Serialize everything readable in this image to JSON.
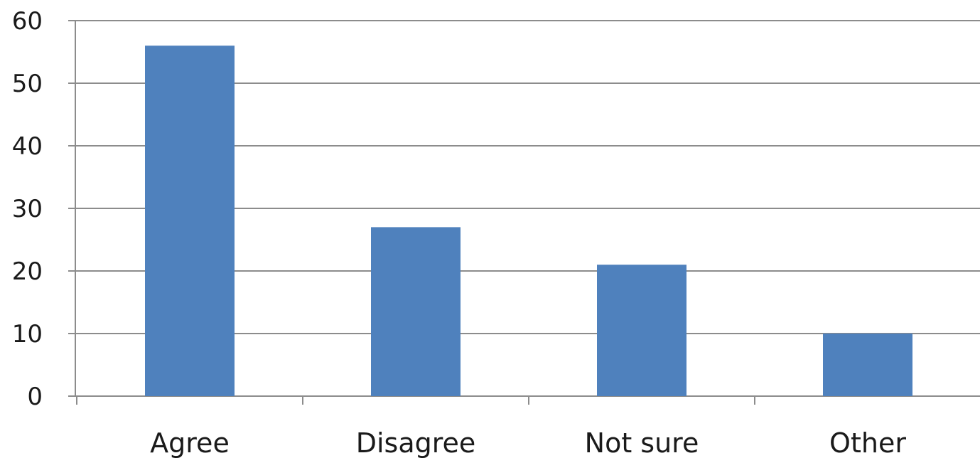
{
  "chart_data": {
    "type": "bar",
    "categories": [
      "Agree",
      "Disagree",
      "Not sure",
      "Other"
    ],
    "values": [
      56,
      27,
      21,
      10
    ],
    "title": "",
    "xlabel": "",
    "ylabel": "",
    "ylim": [
      0,
      60
    ],
    "yticks": [
      "0",
      "10",
      "20",
      "30",
      "40",
      "50",
      "60"
    ],
    "grid": true,
    "legend": "none",
    "colors": {
      "bar": "#4f81bd",
      "grid": "#8c8c8c",
      "axis": "#8c8c8c"
    }
  }
}
